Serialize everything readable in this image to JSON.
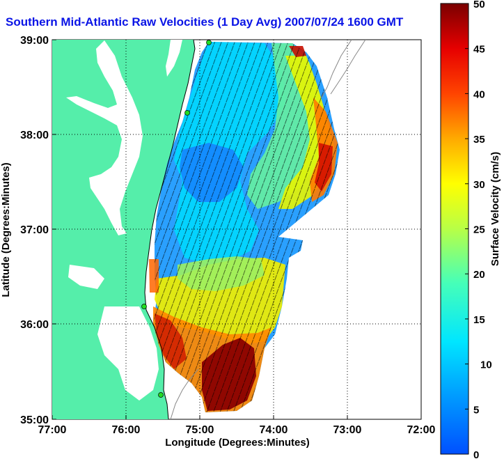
{
  "title": "Southern Mid-Atlantic Raw Velocities (1 Day Avg) 2007/07/24 1600 GMT",
  "x_axis": {
    "label": "Longitude (Degrees:Minutes)",
    "ticks": [
      "77:00",
      "76:00",
      "75:00",
      "74:00",
      "73:00",
      "72:00"
    ]
  },
  "y_axis": {
    "label": "Latitude (Degrees:Minutes)",
    "ticks": [
      "39:00",
      "38:00",
      "37:00",
      "36:00",
      "35:00"
    ]
  },
  "colorbar": {
    "label": "Surface Velocity (cm/s)",
    "ticks": [
      "50",
      "45",
      "40",
      "35",
      "30",
      "25",
      "20",
      "15",
      "10",
      "5",
      "0"
    ],
    "min": 0,
    "max": 50
  },
  "colors": {
    "title": "#0a14e6",
    "land": "#55eeaa",
    "grid": "#000000"
  }
}
